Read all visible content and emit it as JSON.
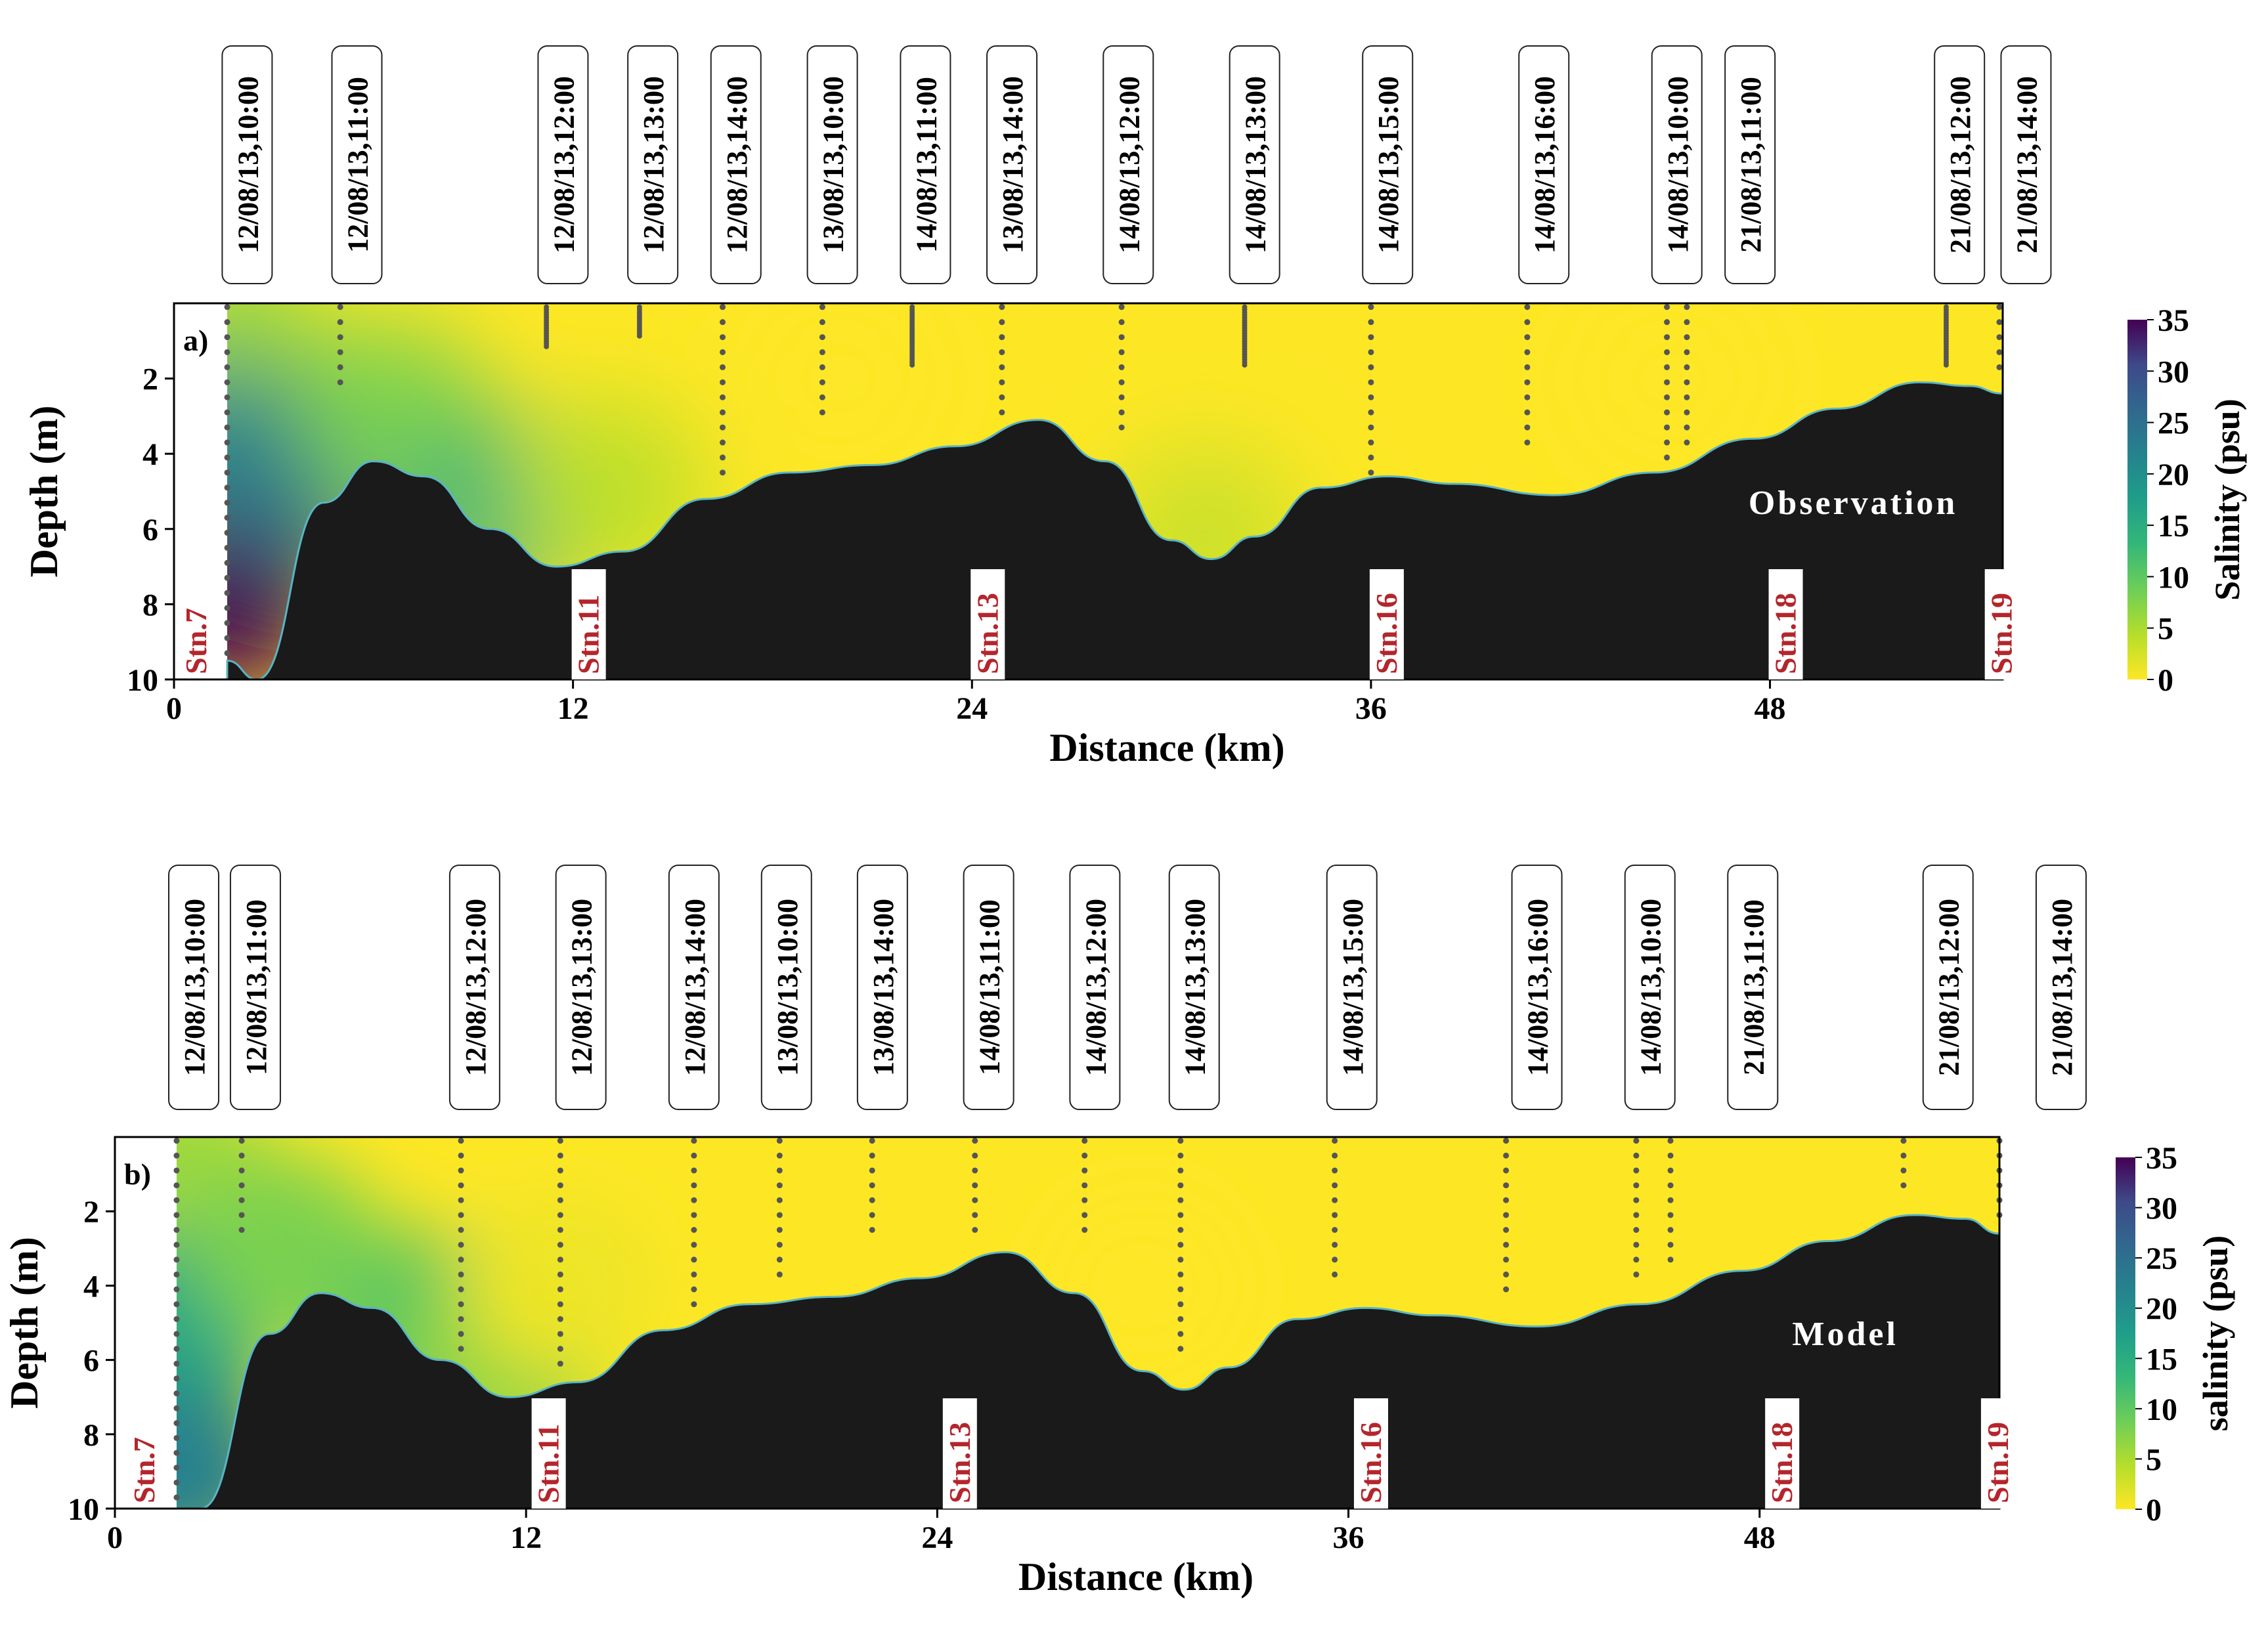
{
  "chart_data": [
    {
      "type": "heatmap",
      "panel_label": "a)",
      "annotation": "Observation",
      "xlabel": "Distance (km)",
      "ylabel": "Depth (m)",
      "xlim": [
        0,
        55
      ],
      "ylim": [
        0,
        10
      ],
      "y_inverted": true,
      "x_ticks": [
        0,
        12,
        24,
        36,
        48
      ],
      "y_ticks": [
        2,
        4,
        6,
        8,
        10
      ],
      "colorbar": {
        "label": "Salinity (psu)",
        "ticks": [
          0,
          5,
          10,
          15,
          20,
          25,
          30,
          35
        ],
        "range": [
          0,
          35
        ],
        "colormap": "viridis_r"
      },
      "seabed_color": "#1a1a1a",
      "bottom_depth_profile": [
        [
          1.6,
          9.5
        ],
        [
          2.5,
          10.0
        ],
        [
          4.5,
          5.3
        ],
        [
          6.0,
          4.2
        ],
        [
          7.5,
          4.6
        ],
        [
          9.5,
          6.0
        ],
        [
          11.5,
          7.0
        ],
        [
          13.5,
          6.6
        ],
        [
          16.0,
          5.2
        ],
        [
          18.5,
          4.5
        ],
        [
          21.0,
          4.3
        ],
        [
          23.5,
          3.8
        ],
        [
          26.0,
          3.1
        ],
        [
          28.0,
          4.2
        ],
        [
          30.0,
          6.3
        ],
        [
          31.2,
          6.8
        ],
        [
          32.5,
          6.2
        ],
        [
          34.5,
          4.9
        ],
        [
          36.5,
          4.6
        ],
        [
          38.5,
          4.8
        ],
        [
          41.5,
          5.1
        ],
        [
          44.5,
          4.5
        ],
        [
          47.5,
          3.6
        ],
        [
          50.0,
          2.8
        ],
        [
          52.5,
          2.1
        ],
        [
          54.0,
          2.2
        ],
        [
          55.0,
          2.4
        ]
      ],
      "salinity_field": [
        {
          "distance_km": 1.6,
          "depth_m": 1.0,
          "salinity_psu": 6
        },
        {
          "distance_km": 1.6,
          "depth_m": 4.0,
          "salinity_psu": 20
        },
        {
          "distance_km": 1.6,
          "depth_m": 8.0,
          "salinity_psu": 35
        },
        {
          "distance_km": 4.0,
          "depth_m": 4.5,
          "salinity_psu": 24
        },
        {
          "distance_km": 6.5,
          "depth_m": 3.0,
          "salinity_psu": 8
        },
        {
          "distance_km": 10.0,
          "depth_m": 5.5,
          "salinity_psu": 14
        },
        {
          "distance_km": 13.0,
          "depth_m": 5.0,
          "salinity_psu": 4
        },
        {
          "distance_km": 20.0,
          "depth_m": 2.0,
          "salinity_psu": 0
        },
        {
          "distance_km": 31.0,
          "depth_m": 6.2,
          "salinity_psu": 3
        },
        {
          "distance_km": 45.0,
          "depth_m": 2.0,
          "salinity_psu": 0
        }
      ],
      "station_labels": [
        {
          "label": "Stn.7",
          "distance_km": 0.2
        },
        {
          "label": "Stn.11",
          "distance_km": 12.0
        },
        {
          "label": "Stn.13",
          "distance_km": 24.0
        },
        {
          "label": "Stn.16",
          "distance_km": 36.0
        },
        {
          "label": "Stn.18",
          "distance_km": 48.0
        },
        {
          "label": "Stn.19",
          "distance_km": 54.5
        }
      ],
      "sample_profiles": [
        {
          "distance_km": 1.6,
          "time": "12/08/13,10:00",
          "max_depth": 9.3,
          "dense": false
        },
        {
          "distance_km": 5.0,
          "time": "12/08/13,11:00",
          "max_depth": 2.4,
          "dense": false
        },
        {
          "distance_km": 11.2,
          "time": "12/08/13,12:00",
          "max_depth": 1.2,
          "dense": true
        },
        {
          "distance_km": 14.0,
          "time": "12/08/13,13:00",
          "max_depth": 0.9,
          "dense": true
        },
        {
          "distance_km": 16.5,
          "time": "12/08/13,14:00",
          "max_depth": 4.8,
          "dense": false
        },
        {
          "distance_km": 19.5,
          "time": "13/08/13,10:00",
          "max_depth": 3.2,
          "dense": false
        },
        {
          "distance_km": 22.2,
          "time": "14/08/13,11:00",
          "max_depth": 1.7,
          "dense": true
        },
        {
          "distance_km": 24.9,
          "time": "13/08/13,14:00",
          "max_depth": 2.9,
          "dense": false
        },
        {
          "distance_km": 28.5,
          "time": "14/08/13,12:00",
          "max_depth": 3.6,
          "dense": false
        },
        {
          "distance_km": 32.2,
          "time": "14/08/13,13:00",
          "max_depth": 1.7,
          "dense": true
        },
        {
          "distance_km": 36.0,
          "time": "14/08/13,15:00",
          "max_depth": 4.5,
          "dense": false
        },
        {
          "distance_km": 40.7,
          "time": "14/08/13,16:00",
          "max_depth": 4.0,
          "dense": false
        },
        {
          "distance_km": 44.9,
          "time": "14/08/13,10:00",
          "max_depth": 4.2,
          "dense": false
        },
        {
          "distance_km": 45.5,
          "time": "21/08/13,11:00",
          "max_depth": 4.0,
          "dense": false
        },
        {
          "distance_km": 53.3,
          "time": "21/08/13,12:00",
          "max_depth": 1.7,
          "dense": true
        },
        {
          "distance_km": 54.9,
          "time": "21/08/13,14:00",
          "max_depth": 2.0,
          "dense": false
        }
      ],
      "time_labels": [
        {
          "text": "12/08/13,10:00",
          "distance_km": 2.2
        },
        {
          "text": "12/08/13,11:00",
          "distance_km": 5.5
        },
        {
          "text": "12/08/13,12:00",
          "distance_km": 11.7
        },
        {
          "text": "12/08/13,13:00",
          "distance_km": 14.4
        },
        {
          "text": "12/08/13,14:00",
          "distance_km": 16.9
        },
        {
          "text": "13/08/13,10:00",
          "distance_km": 19.8
        },
        {
          "text": "14/08/13,11:00",
          "distance_km": 22.6
        },
        {
          "text": "13/08/13,14:00",
          "distance_km": 25.2
        },
        {
          "text": "14/08/13,12:00",
          "distance_km": 28.7
        },
        {
          "text": "14/08/13,13:00",
          "distance_km": 32.5
        },
        {
          "text": "14/08/13,15:00",
          "distance_km": 36.5
        },
        {
          "text": "14/08/13,16:00",
          "distance_km": 41.2
        },
        {
          "text": "14/08/13,10:00",
          "distance_km": 45.2
        },
        {
          "text": "21/08/13,11:00",
          "distance_km": 47.4
        },
        {
          "text": "21/08/13,12:00",
          "distance_km": 53.7
        },
        {
          "text": "21/08/13,14:00",
          "distance_km": 55.7
        }
      ]
    },
    {
      "type": "heatmap",
      "panel_label": "b)",
      "annotation": "Model",
      "xlabel": "Distance (km)",
      "ylabel": "Depth (m)",
      "xlim": [
        0,
        55
      ],
      "ylim": [
        0,
        10
      ],
      "y_inverted": true,
      "x_ticks": [
        0,
        12,
        24,
        36,
        48
      ],
      "y_ticks": [
        2,
        4,
        6,
        8,
        10
      ],
      "colorbar": {
        "label": "salinity (psu)",
        "ticks": [
          0,
          5,
          10,
          15,
          20,
          25,
          30,
          35
        ],
        "range": [
          0,
          35
        ],
        "colormap": "viridis_r"
      },
      "seabed_color": "#1a1a1a",
      "bottom_depth_profile": [
        [
          1.8,
          10.0
        ],
        [
          2.5,
          10.0
        ],
        [
          4.5,
          5.3
        ],
        [
          6.0,
          4.2
        ],
        [
          7.5,
          4.6
        ],
        [
          9.5,
          6.0
        ],
        [
          11.5,
          7.0
        ],
        [
          13.5,
          6.6
        ],
        [
          16.0,
          5.2
        ],
        [
          18.5,
          4.5
        ],
        [
          21.0,
          4.3
        ],
        [
          23.5,
          3.8
        ],
        [
          26.0,
          3.1
        ],
        [
          28.0,
          4.2
        ],
        [
          30.0,
          6.3
        ],
        [
          31.2,
          6.8
        ],
        [
          32.5,
          6.2
        ],
        [
          34.5,
          4.9
        ],
        [
          36.5,
          4.6
        ],
        [
          38.5,
          4.8
        ],
        [
          41.5,
          5.1
        ],
        [
          44.5,
          4.5
        ],
        [
          47.5,
          3.6
        ],
        [
          50.0,
          2.8
        ],
        [
          52.5,
          2.1
        ],
        [
          54.0,
          2.2
        ],
        [
          55.0,
          2.6
        ]
      ],
      "salinity_field": [
        {
          "distance_km": 1.8,
          "depth_m": 1.0,
          "salinity_psu": 6
        },
        {
          "distance_km": 1.8,
          "depth_m": 5.0,
          "salinity_psu": 16
        },
        {
          "distance_km": 1.8,
          "depth_m": 9.0,
          "salinity_psu": 22
        },
        {
          "distance_km": 5.0,
          "depth_m": 3.0,
          "salinity_psu": 8
        },
        {
          "distance_km": 9.0,
          "depth_m": 5.0,
          "salinity_psu": 10
        },
        {
          "distance_km": 11.5,
          "depth_m": 6.0,
          "salinity_psu": 7
        },
        {
          "distance_km": 13.0,
          "depth_m": 4.0,
          "salinity_psu": 1
        },
        {
          "distance_km": 30.0,
          "depth_m": 4.0,
          "salinity_psu": 0
        }
      ],
      "station_labels": [
        {
          "label": "Stn.7",
          "distance_km": 0.4
        },
        {
          "label": "Stn.11",
          "distance_km": 12.2
        },
        {
          "label": "Stn.13",
          "distance_km": 24.2
        },
        {
          "label": "Stn.16",
          "distance_km": 36.2
        },
        {
          "label": "Stn.18",
          "distance_km": 48.2
        },
        {
          "label": "Stn.19",
          "distance_km": 54.5
        }
      ],
      "sample_profiles": [
        {
          "distance_km": 1.8,
          "time": "12/08/13,10:00",
          "max_depth": 9.8,
          "dense": false
        },
        {
          "distance_km": 3.7,
          "time": "12/08/13,11:00",
          "max_depth": 2.8,
          "dense": false
        },
        {
          "distance_km": 10.1,
          "time": "12/08/13,12:00",
          "max_depth": 5.8,
          "dense": false
        },
        {
          "distance_km": 13.0,
          "time": "12/08/13,13:00",
          "max_depth": 6.3,
          "dense": false
        },
        {
          "distance_km": 16.9,
          "time": "12/08/13,14:00",
          "max_depth": 4.6,
          "dense": false
        },
        {
          "distance_km": 19.4,
          "time": "13/08/13,10:00",
          "max_depth": 4.0,
          "dense": false
        },
        {
          "distance_km": 22.1,
          "time": "13/08/13,14:00",
          "max_depth": 2.6,
          "dense": false
        },
        {
          "distance_km": 25.1,
          "time": "14/08/13,11:00",
          "max_depth": 2.6,
          "dense": false
        },
        {
          "distance_km": 28.3,
          "time": "14/08/13,12:00",
          "max_depth": 2.6,
          "dense": false
        },
        {
          "distance_km": 31.1,
          "time": "14/08/13,13:00",
          "max_depth": 5.9,
          "dense": false
        },
        {
          "distance_km": 35.6,
          "time": "14/08/13,15:00",
          "max_depth": 4.0,
          "dense": false
        },
        {
          "distance_km": 40.6,
          "time": "14/08/13,16:00",
          "max_depth": 4.2,
          "dense": false
        },
        {
          "distance_km": 44.4,
          "time": "14/08/13,10:00",
          "max_depth": 4.0,
          "dense": false
        },
        {
          "distance_km": 45.4,
          "time": "21/08/13,11:00",
          "max_depth": 3.5,
          "dense": false
        },
        {
          "distance_km": 52.2,
          "time": "21/08/13,12:00",
          "max_depth": 1.4,
          "dense": false
        },
        {
          "distance_km": 55.0,
          "time": "21/08/13,14:00",
          "max_depth": 2.3,
          "dense": false
        }
      ],
      "time_labels": [
        {
          "text": "12/08/13,10:00",
          "distance_km": 2.3
        },
        {
          "text": "12/08/13,11:00",
          "distance_km": 4.1
        },
        {
          "text": "12/08/13,12:00",
          "distance_km": 10.5
        },
        {
          "text": "12/08/13,13:00",
          "distance_km": 13.6
        },
        {
          "text": "12/08/13,14:00",
          "distance_km": 16.9
        },
        {
          "text": "13/08/13,10:00",
          "distance_km": 19.6
        },
        {
          "text": "13/08/13,14:00",
          "distance_km": 22.4
        },
        {
          "text": "14/08/13,11:00",
          "distance_km": 25.5
        },
        {
          "text": "14/08/13,12:00",
          "distance_km": 28.6
        },
        {
          "text": "14/08/13,13:00",
          "distance_km": 31.5
        },
        {
          "text": "14/08/13,15:00",
          "distance_km": 36.1
        },
        {
          "text": "14/08/13,16:00",
          "distance_km": 41.5
        },
        {
          "text": "14/08/13,10:00",
          "distance_km": 44.8
        },
        {
          "text": "21/08/13,11:00",
          "distance_km": 47.8
        },
        {
          "text": "21/08/13,12:00",
          "distance_km": 53.5
        },
        {
          "text": "21/08/13,14:00",
          "distance_km": 56.8
        }
      ]
    }
  ],
  "colors": {
    "station_label": "#b3262c",
    "sample_dot": "#555555",
    "axis": "#000000"
  }
}
